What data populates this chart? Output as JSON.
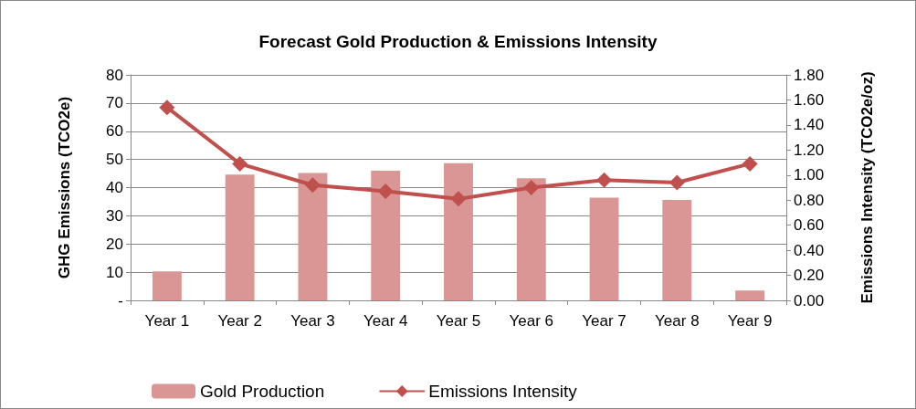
{
  "chart_data": {
    "type": "bar",
    "title": "Forecast Gold Production & Emissions Intensity",
    "ylabel": "GHG Emissions (TCO2e)",
    "y2label": "Emissions Intensity (TCO2e/oz)",
    "categories": [
      "Year 1",
      "Year 2",
      "Year 3",
      "Year 4",
      "Year 5",
      "Year 6",
      "Year 7",
      "Year 8",
      "Year 9"
    ],
    "series": [
      {
        "name": "Gold Production",
        "color": "#d99694",
        "values": [
          10.3,
          44.6,
          45.2,
          46.0,
          48.7,
          43.3,
          36.4,
          35.6,
          3.5
        ]
      },
      {
        "name": "Emissions Intensity",
        "type": "line",
        "axis": "y2",
        "color": "#c0504d",
        "marker": "diamond",
        "values": [
          1.54,
          1.09,
          0.92,
          0.87,
          0.81,
          0.9,
          0.96,
          0.94,
          1.09
        ]
      }
    ],
    "ylim": [
      0,
      80
    ],
    "yticks": [
      {
        "value": 0,
        "label": "-"
      },
      10,
      20,
      30,
      40,
      50,
      60,
      70,
      80
    ],
    "y2lim": [
      0,
      1.8
    ],
    "y2ticks": [
      {
        "value": 0,
        "label": "0.00"
      },
      {
        "value": 0.2,
        "label": "0.20"
      },
      {
        "value": 0.4,
        "label": "0.40"
      },
      {
        "value": 0.6,
        "label": "0.60"
      },
      {
        "value": 0.8,
        "label": "0.80"
      },
      {
        "value": 1,
        "label": "1.00"
      },
      {
        "value": 1.2,
        "label": "1.20"
      },
      {
        "value": 1.4,
        "label": "1.40"
      },
      {
        "value": 1.6,
        "label": "1.60"
      },
      {
        "value": 1.8,
        "label": "1.80"
      }
    ],
    "grid": "y",
    "legend": "bottom"
  }
}
